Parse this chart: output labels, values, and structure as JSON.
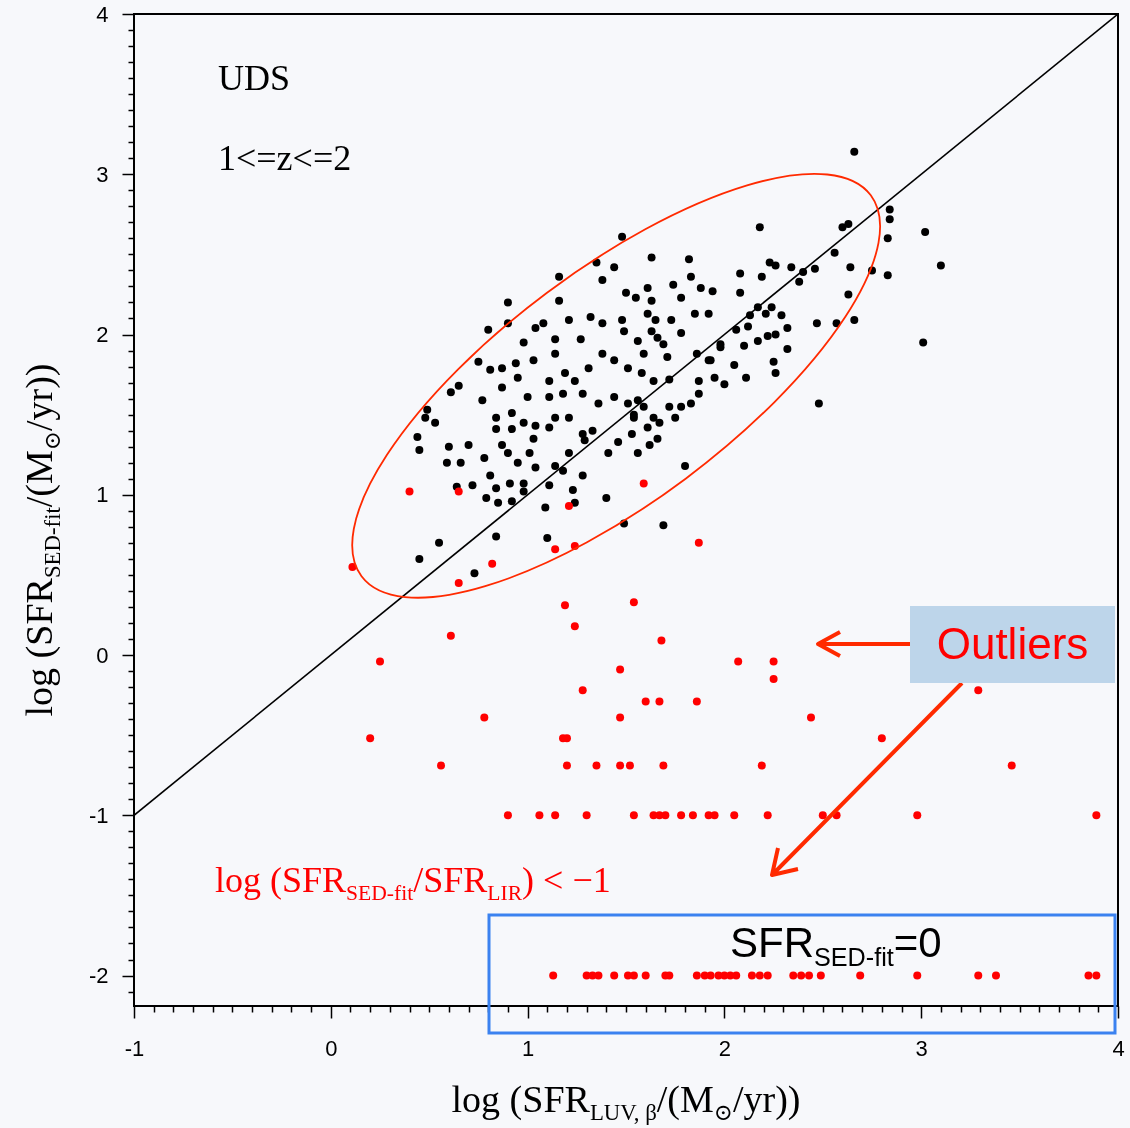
{
  "chart_data": {
    "type": "scatter",
    "xlabel": "log (SFR$_{LUV, β}$/(M$_{⊙}$/yr))",
    "ylabel": "log (SFR$_{SED-fit}$/(M$_{⊙}$/yr))",
    "xlim": [
      -1,
      4
    ],
    "ylim": [
      -2.19,
      4
    ],
    "xticks": [
      -1,
      {
        "value": -0.9,
        "label": null
      },
      {
        "value": -0.8,
        "label": null
      },
      {
        "value": -0.7,
        "label": null
      },
      {
        "value": -0.6,
        "label": null
      },
      {
        "value": -0.5,
        "label": null
      },
      {
        "value": -0.4,
        "label": null
      },
      {
        "value": -0.3,
        "label": null
      },
      {
        "value": -0.2,
        "label": null
      },
      {
        "value": -0.1,
        "label": null
      },
      0,
      {
        "value": 0.1,
        "label": null
      },
      {
        "value": 0.2,
        "label": null
      },
      {
        "value": 0.3,
        "label": null
      },
      {
        "value": 0.4,
        "label": null
      },
      {
        "value": 0.5,
        "label": null
      },
      {
        "value": 0.6,
        "label": null
      },
      {
        "value": 0.7,
        "label": null
      },
      {
        "value": 0.8,
        "label": null
      },
      {
        "value": 0.9,
        "label": null
      },
      1,
      {
        "value": 1.1,
        "label": null
      },
      {
        "value": 1.2,
        "label": null
      },
      {
        "value": 1.3,
        "label": null
      },
      {
        "value": 1.4,
        "label": null
      },
      {
        "value": 1.5,
        "label": null
      },
      {
        "value": 1.6,
        "label": null
      },
      {
        "value": 1.7,
        "label": null
      },
      {
        "value": 1.8,
        "label": null
      },
      {
        "value": 1.9,
        "label": null
      },
      2,
      {
        "value": 2.1,
        "label": null
      },
      {
        "value": 2.2,
        "label": null
      },
      {
        "value": 2.3,
        "label": null
      },
      {
        "value": 2.4,
        "label": null
      },
      {
        "value": 2.5,
        "label": null
      },
      {
        "value": 2.6,
        "label": null
      },
      {
        "value": 2.7,
        "label": null
      },
      {
        "value": 2.8,
        "label": null
      },
      {
        "value": 2.9,
        "label": null
      },
      3,
      {
        "value": 3.1,
        "label": null
      },
      {
        "value": 3.2,
        "label": null
      },
      {
        "value": 3.3,
        "label": null
      },
      {
        "value": 3.4,
        "label": null
      },
      {
        "value": 3.5,
        "label": null
      },
      {
        "value": 3.6,
        "label": null
      },
      {
        "value": 3.7,
        "label": null
      },
      {
        "value": 3.8,
        "label": null
      },
      {
        "value": 3.9,
        "label": null
      },
      4
    ],
    "yticks": [
      {
        "value": -2.1,
        "label": null
      },
      -2,
      {
        "value": -1.9,
        "label": null
      },
      {
        "value": -1.8,
        "label": null
      },
      {
        "value": -1.7,
        "label": null
      },
      {
        "value": -1.6,
        "label": null
      },
      {
        "value": -1.5,
        "label": null
      },
      {
        "value": -1.4,
        "label": null
      },
      {
        "value": -1.3,
        "label": null
      },
      {
        "value": -1.2,
        "label": null
      },
      {
        "value": -1.1,
        "label": null
      },
      -1,
      {
        "value": -0.9,
        "label": null
      },
      {
        "value": -0.8,
        "label": null
      },
      {
        "value": -0.7,
        "label": null
      },
      {
        "value": -0.6,
        "label": null
      },
      {
        "value": -0.5,
        "label": null
      },
      {
        "value": -0.4,
        "label": null
      },
      {
        "value": -0.3,
        "label": null
      },
      {
        "value": -0.2,
        "label": null
      },
      {
        "value": -0.1,
        "label": null
      },
      0,
      {
        "value": 0.1,
        "label": null
      },
      {
        "value": 0.2,
        "label": null
      },
      {
        "value": 0.3,
        "label": null
      },
      {
        "value": 0.4,
        "label": null
      },
      {
        "value": 0.5,
        "label": null
      },
      {
        "value": 0.6,
        "label": null
      },
      {
        "value": 0.7,
        "label": null
      },
      {
        "value": 0.8,
        "label": null
      },
      {
        "value": 0.9,
        "label": null
      },
      1,
      {
        "value": 1.1,
        "label": null
      },
      {
        "value": 1.2,
        "label": null
      },
      {
        "value": 1.3,
        "label": null
      },
      {
        "value": 1.4,
        "label": null
      },
      {
        "value": 1.5,
        "label": null
      },
      {
        "value": 1.6,
        "label": null
      },
      {
        "value": 1.7,
        "label": null
      },
      {
        "value": 1.8,
        "label": null
      },
      {
        "value": 1.9,
        "label": null
      },
      2,
      {
        "value": 2.1,
        "label": null
      },
      {
        "value": 2.2,
        "label": null
      },
      {
        "value": 2.3,
        "label": null
      },
      {
        "value": 2.4,
        "label": null
      },
      {
        "value": 2.5,
        "label": null
      },
      {
        "value": 2.6,
        "label": null
      },
      {
        "value": 2.7,
        "label": null
      },
      {
        "value": 2.8,
        "label": null
      },
      {
        "value": 2.9,
        "label": null
      },
      3,
      {
        "value": 3.1,
        "label": null
      },
      {
        "value": 3.2,
        "label": null
      },
      {
        "value": 3.3,
        "label": null
      },
      {
        "value": 3.4,
        "label": null
      },
      {
        "value": 3.5,
        "label": null
      },
      {
        "value": 3.6,
        "label": null
      },
      {
        "value": 3.7,
        "label": null
      },
      {
        "value": 3.8,
        "label": null
      },
      {
        "value": 3.9,
        "label": null
      },
      4
    ],
    "annotations": [
      "UDS",
      "1<=z<=2",
      "Outliers",
      "log (SFR$_{SED-fit}$/SFR$_{LIR}$) < −1",
      "SFR$_{SED-fit}$=0"
    ],
    "series": [
      {
        "type": "line",
        "color": "#000000",
        "x": [
          -1,
          4
        ],
        "values": [
          -1,
          4
        ]
      },
      {
        "color": "#000000",
        "marker": "circle",
        "x": [
          2.66,
          2.84,
          2.84,
          2.83,
          3.02,
          3.1,
          2.83,
          3.01,
          2.75,
          2.64,
          2.63,
          2.66,
          2.57,
          2.47,
          2.48,
          2.6,
          2.63,
          2.56,
          2.46,
          2.4,
          2.38,
          2.34,
          2.18,
          2.23,
          2.26,
          2.19,
          2.08,
          2.08,
          2.17,
          2.13,
          2.21,
          2.24,
          2.29,
          2.32,
          2.12,
          2.06,
          2.1,
          2.17,
          2.22,
          2.26,
          2.32,
          2.25,
          2.26,
          2.11,
          2.05,
          2.0,
          1.95,
          1.92,
          1.98,
          1.87,
          1.72,
          1.87,
          1.83,
          1.78,
          1.72,
          1.75,
          1.64,
          1.67,
          1.61,
          1.66,
          1.62,
          1.8,
          1.69,
          1.63,
          1.82,
          1.83,
          1.74,
          1.88,
          1.94,
          1.78,
          1.92,
          1.85,
          1.73,
          1.78,
          1.98,
          1.86,
          1.93,
          1.61,
          1.63,
          1.55,
          1.61,
          1.65,
          1.63,
          1.66,
          1.56,
          1.59,
          1.69,
          1.71,
          1.58,
          1.64,
          1.56,
          1.59,
          1.54,
          1.56,
          1.48,
          1.35,
          1.44,
          1.38,
          1.16,
          1.16,
          0.9,
          0.9,
          0.8,
          1.04,
          1.08,
          0.98,
          1.14,
          1.21,
          1.32,
          1.38,
          1.48,
          1.49,
          1.27,
          1.5,
          0.75,
          0.81,
          0.87,
          0.94,
          1.03,
          1.14,
          0.95,
          1.11,
          1.19,
          1.24,
          1.31,
          1.38,
          1.44,
          1.51,
          0.87,
          1.0,
          1.11,
          1.18,
          1.28,
          1.36,
          1.44,
          1.51,
          0.65,
          0.61,
          0.77,
          0.49,
          0.48,
          0.53,
          0.44,
          0.45,
          0.6,
          0.59,
          0.66,
          0.7,
          0.78,
          0.84,
          0.84,
          0.92,
          0.92,
          0.98,
          1.04,
          1.03,
          0.87,
          0.9,
          0.95,
          1.01,
          1.04,
          0.81,
          0.64,
          0.72,
          0.79,
          0.85,
          0.84,
          0.91,
          0.92,
          0.98,
          0.98,
          1.11,
          1.14,
          1.18,
          1.21,
          1.11,
          1.14,
          1.21,
          1.28,
          1.33,
          1.29,
          1.41,
          1.46,
          1.53,
          1.54,
          1.28,
          1.23,
          1.09,
          1.24,
          1.4,
          1.49,
          0.84,
          1.1,
          0.55,
          0.45,
          0.73
        ],
        "values": [
          3.14,
          2.78,
          2.72,
          2.6,
          2.64,
          2.43,
          2.37,
          1.95,
          2.4,
          2.42,
          2.25,
          2.09,
          2.07,
          2.07,
          1.57,
          2.67,
          2.69,
          2.51,
          2.41,
          2.39,
          2.33,
          2.42,
          2.67,
          2.45,
          2.43,
          2.36,
          2.38,
          2.26,
          2.17,
          2.12,
          2.13,
          2.17,
          2.12,
          2.04,
          2.05,
          2.03,
          1.93,
          1.96,
          1.99,
          2.0,
          1.91,
          1.83,
          1.76,
          1.73,
          1.81,
          1.69,
          1.73,
          1.84,
          1.92,
          1.71,
          1.72,
          1.63,
          1.57,
          1.55,
          1.55,
          1.48,
          1.48,
          1.45,
          1.42,
          1.35,
          1.31,
          1.18,
          0.81,
          2.48,
          2.47,
          2.36,
          2.31,
          2.29,
          2.27,
          2.23,
          2.13,
          2.13,
          2.09,
          2.01,
          1.94,
          1.88,
          1.84,
          2.29,
          2.21,
          2.23,
          2.13,
          2.09,
          2.02,
          1.98,
          1.96,
          1.88,
          1.94,
          1.86,
          1.76,
          1.71,
          1.59,
          1.55,
          1.48,
          1.26,
          2.61,
          2.45,
          2.42,
          2.34,
          2.36,
          2.21,
          2.2,
          2.07,
          2.03,
          2.04,
          2.07,
          1.95,
          1.97,
          2.09,
          2.11,
          2.07,
          2.09,
          2.02,
          1.97,
          2.26,
          1.83,
          1.78,
          1.79,
          1.82,
          1.84,
          1.88,
          1.73,
          1.71,
          1.76,
          1.71,
          1.79,
          1.88,
          1.84,
          1.79,
          1.67,
          1.61,
          1.61,
          1.63,
          1.63,
          1.57,
          1.61,
          1.57,
          1.68,
          1.64,
          1.59,
          1.53,
          1.48,
          1.45,
          1.36,
          1.28,
          1.3,
          1.2,
          1.2,
          1.31,
          1.23,
          1.48,
          1.41,
          1.51,
          1.41,
          1.45,
          1.43,
          1.35,
          1.31,
          1.26,
          1.2,
          1.26,
          1.17,
          1.12,
          1.05,
          1.06,
          0.98,
          0.95,
          1.04,
          1.07,
          0.96,
          1.07,
          1.02,
          1.06,
          1.18,
          1.15,
          1.26,
          1.42,
          1.48,
          1.48,
          1.38,
          1.4,
          1.34,
          1.26,
          1.33,
          1.38,
          1.5,
          1.12,
          1.03,
          0.92,
          0.95,
          0.98,
          0.82,
          0.74,
          0.73,
          0.7,
          0.6,
          0.51
        ]
      },
      {
        "color": "#ff0000",
        "marker": "circle",
        "x": [
          0.4,
          0.65,
          1.21,
          1.59,
          0.11,
          0.65,
          0.82,
          1.14,
          1.24,
          1.87,
          1.19,
          1.54,
          1.24,
          0.61,
          1.68,
          0.25,
          2.07,
          2.25,
          2.25,
          1.47,
          1.28,
          1.6,
          1.67,
          1.86,
          3.29,
          0.78,
          1.47,
          2.44,
          0.2,
          1.18,
          1.2,
          2.8,
          0.56,
          1.2,
          1.35,
          1.47,
          1.52,
          1.69,
          2.19,
          3.46,
          0.9,
          1.06,
          1.14,
          1.3,
          1.54,
          1.64,
          1.67,
          1.7,
          1.78,
          1.84,
          1.92,
          1.95,
          2.05,
          2.22,
          2.5,
          2.57,
          2.98,
          3.89,
          1.13,
          1.3,
          1.33,
          1.36,
          1.44,
          1.51,
          1.54,
          1.6,
          1.7,
          1.72,
          1.86,
          1.9,
          1.93,
          1.97,
          2.0,
          2.03,
          2.06,
          2.14,
          2.18,
          2.22,
          2.35,
          2.39,
          2.43,
          2.49,
          2.69,
          2.98,
          3.29,
          3.38,
          3.85,
          3.89
        ],
        "values": [
          1.02,
          1.02,
          0.93,
          1.07,
          0.55,
          0.45,
          0.57,
          0.66,
          0.68,
          0.7,
          0.31,
          0.33,
          0.18,
          0.12,
          0.09,
          -0.04,
          -0.04,
          -0.04,
          -0.15,
          -0.09,
          -0.22,
          -0.29,
          -0.29,
          -0.29,
          -0.22,
          -0.39,
          -0.39,
          -0.39,
          -0.52,
          -0.52,
          -0.52,
          -0.52,
          -0.69,
          -0.69,
          -0.69,
          -0.69,
          -0.69,
          -0.69,
          -0.69,
          -0.69,
          -1,
          -1,
          -1,
          -1,
          -1,
          -1,
          -1,
          -1,
          -1,
          -1,
          -1,
          -1,
          -1,
          -1,
          -1,
          -1,
          -1,
          -1,
          -2,
          -2,
          -2,
          -2,
          -2,
          -2,
          -2,
          -2,
          -2,
          -2,
          -2,
          -2,
          -2,
          -2,
          -2,
          -2,
          -2,
          -2,
          -2,
          -2,
          -2,
          -2,
          -2,
          -2,
          -2,
          -2,
          -2,
          -2,
          -2,
          -2
        ]
      }
    ]
  }
}
